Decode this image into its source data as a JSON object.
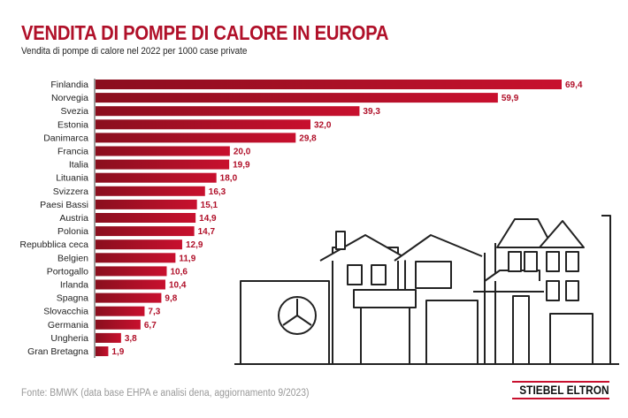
{
  "chart_data": {
    "type": "bar",
    "orientation": "horizontal",
    "title": "VENDITA DI POMPE DI CALORE IN EUROPA",
    "subtitle": "Vendita di pompe di calore nel 2022 per 1000 case private",
    "categories": [
      "Finlandia",
      "Norvegia",
      "Svezia",
      "Estonia",
      "Danimarca",
      "Francia",
      "Italia",
      "Lituania",
      "Svizzera",
      "Paesi Bassi",
      "Austria",
      "Polonia",
      "Repubblica ceca",
      "Belgien",
      "Portogallo",
      "Irlanda",
      "Spagna",
      "Slovacchia",
      "Germania",
      "Ungheria",
      "Gran Bretagna"
    ],
    "values": [
      69.4,
      59.9,
      39.3,
      32.0,
      29.8,
      20.0,
      19.9,
      18.0,
      16.3,
      15.1,
      14.9,
      14.7,
      12.9,
      11.9,
      10.6,
      10.4,
      9.8,
      7.3,
      6.7,
      3.8,
      1.9
    ],
    "labels": [
      "69,4",
      "59,9",
      "39,3",
      "32,0",
      "29,8",
      "20,0",
      "19,9",
      "18,0",
      "16,3",
      "15,1",
      "14,9",
      "14,7",
      "12,9",
      "11,9",
      "10,6",
      "10,4",
      "9,8",
      "7,3",
      "6,7",
      "3,8",
      "1,9"
    ],
    "bar_color": "#b01029",
    "bar_gradient_start": "#8a0f1e",
    "xlim": [
      0,
      70
    ],
    "grid": false
  },
  "footer": {
    "source": "Fonte: BMWK (data base EHPA e analisi dena, aggiornamento 9/2023)",
    "logo": "STIEBEL ELTRON"
  },
  "colors": {
    "accent": "#b01029"
  }
}
